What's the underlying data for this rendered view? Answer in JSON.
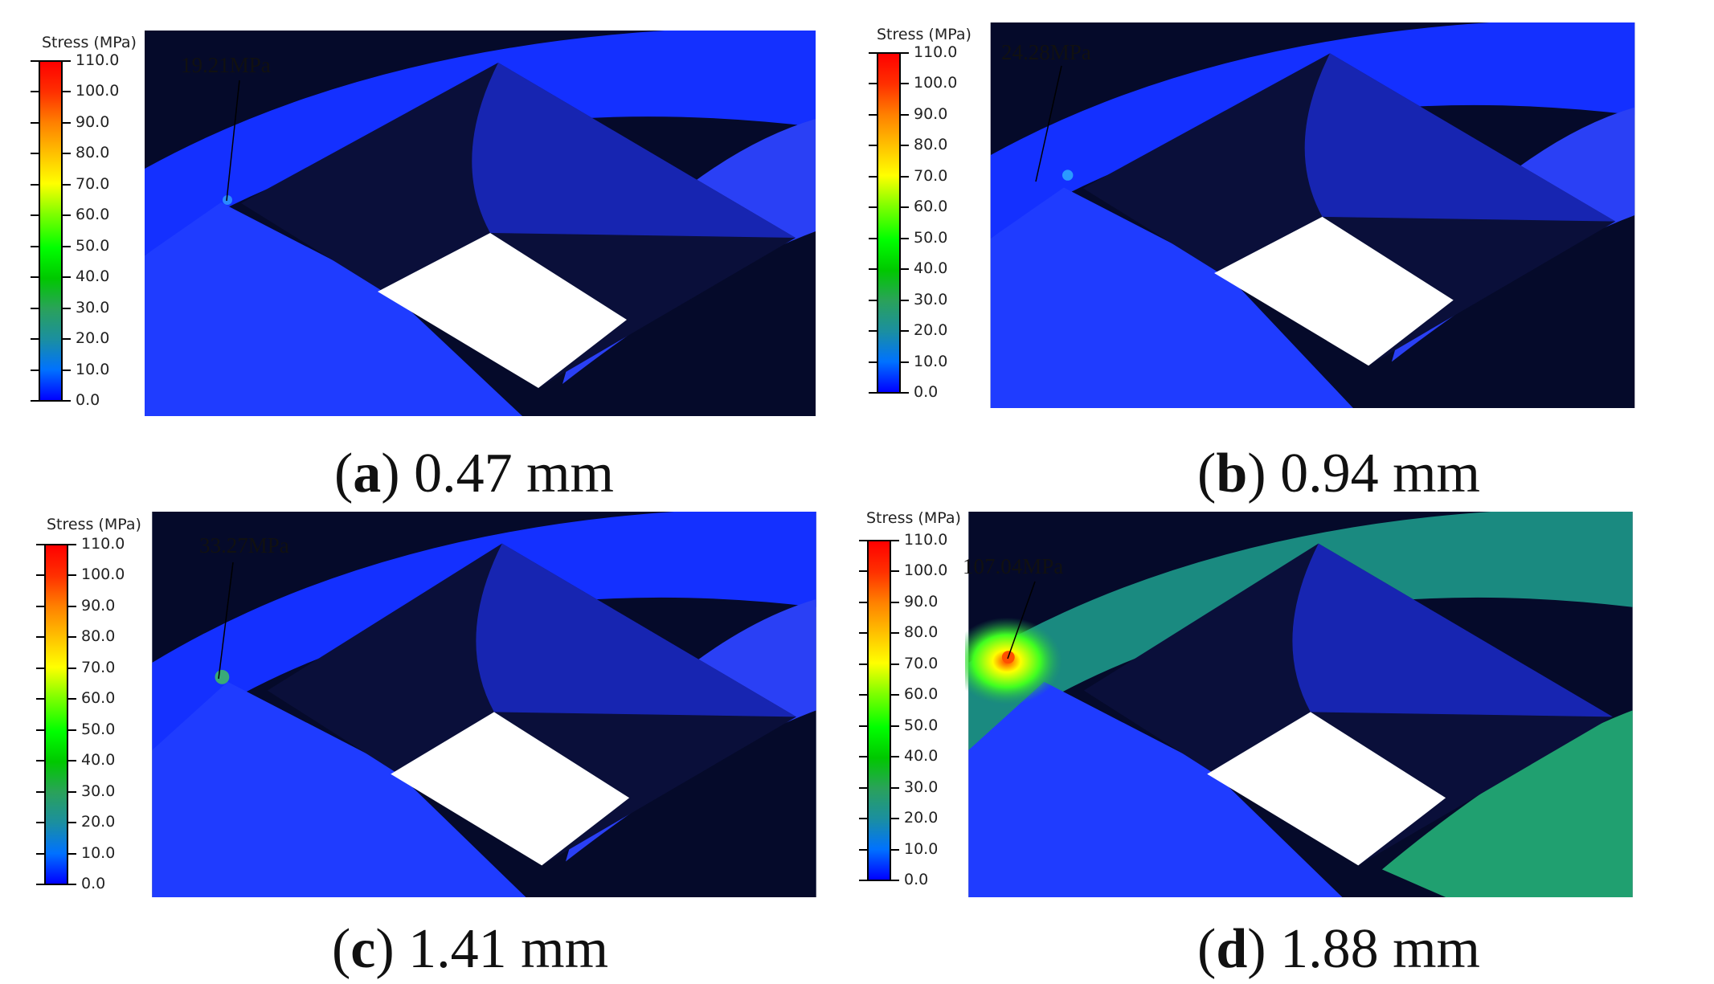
{
  "legend": {
    "title": "Stress (MPa)",
    "ticks": [
      "110.0",
      "100.0",
      "90.0",
      "80.0",
      "70.0",
      "60.0",
      "50.0",
      "40.0",
      "30.0",
      "20.0",
      "10.0",
      "0.0"
    ],
    "colors": [
      "#0000ff",
      "#1b8fa0",
      "#00c800",
      "#ffff00",
      "#ff8000",
      "#ff0000"
    ]
  },
  "panels": [
    {
      "letter": "a",
      "value": "0.47 mm",
      "max_stress": "19.21MPa",
      "max_stress_fraction": 0.175
    },
    {
      "letter": "b",
      "value": "0.94 mm",
      "max_stress": "24.28MPa",
      "max_stress_fraction": 0.221
    },
    {
      "letter": "c",
      "value": "1.41 mm",
      "max_stress": "33.27MPa",
      "max_stress_fraction": 0.302
    },
    {
      "letter": "d",
      "value": "1.88 mm",
      "max_stress": "107.04MPa",
      "max_stress_fraction": 0.973
    }
  ]
}
